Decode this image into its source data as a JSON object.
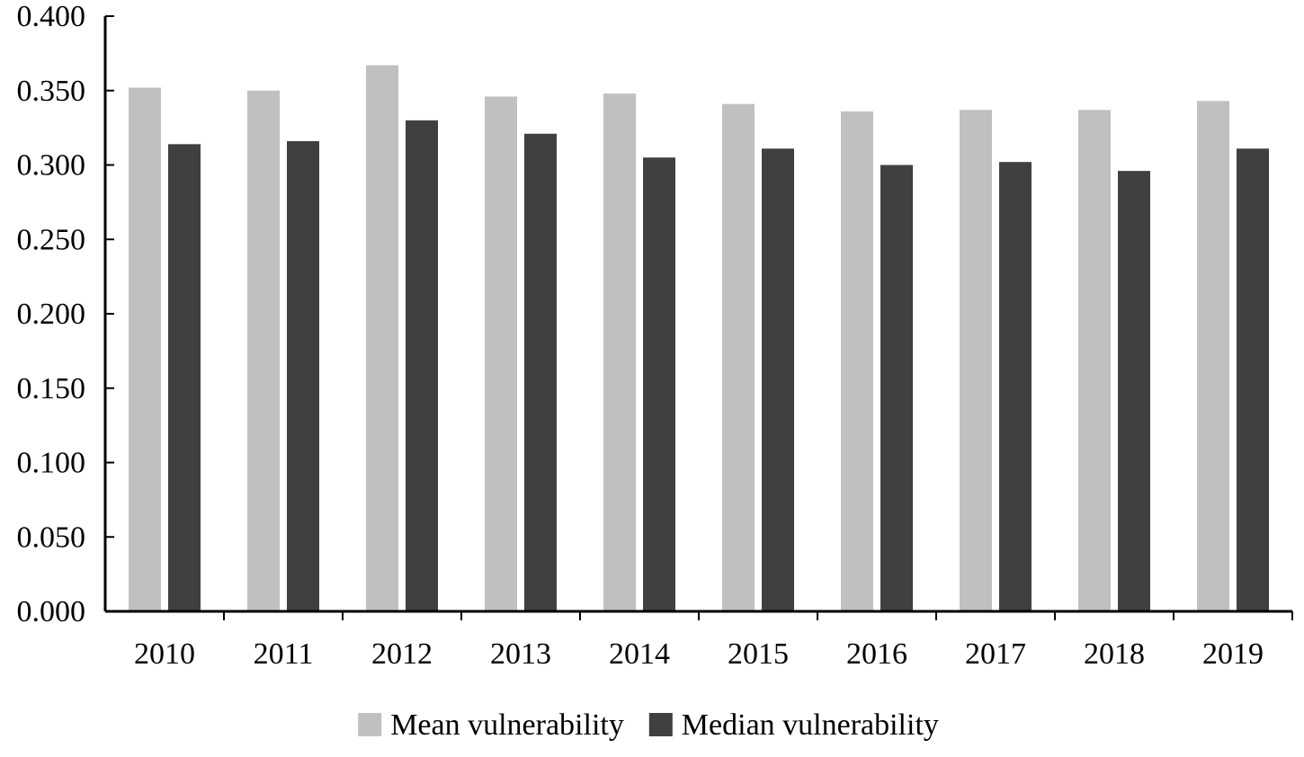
{
  "chart_data": {
    "type": "bar",
    "title": "",
    "xlabel": "",
    "ylabel": "",
    "categories": [
      "2010",
      "2011",
      "2012",
      "2013",
      "2014",
      "2015",
      "2016",
      "2017",
      "2018",
      "2019"
    ],
    "series": [
      {
        "name": "Mean vulnerability",
        "color": "#c0c0c0",
        "values": [
          0.352,
          0.35,
          0.367,
          0.346,
          0.348,
          0.341,
          0.336,
          0.337,
          0.337,
          0.343
        ]
      },
      {
        "name": "Median vulnerability",
        "color": "#404040",
        "values": [
          0.314,
          0.316,
          0.33,
          0.321,
          0.305,
          0.311,
          0.3,
          0.302,
          0.296,
          0.311
        ]
      }
    ],
    "ylim": [
      0,
      0.4
    ],
    "yticks": [
      "0.000",
      "0.050",
      "0.100",
      "0.150",
      "0.200",
      "0.250",
      "0.300",
      "0.350",
      "0.400"
    ],
    "grid": false,
    "legend_position": "bottom-center"
  }
}
